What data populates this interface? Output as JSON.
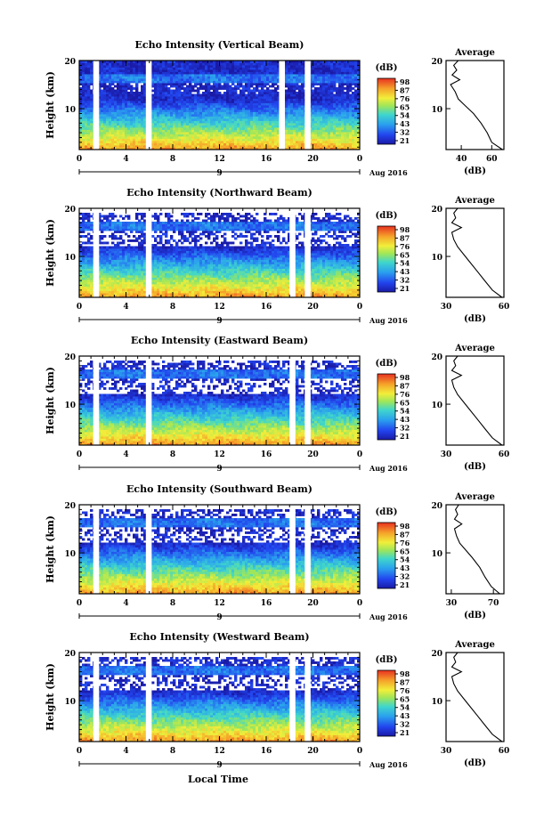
{
  "figure": {
    "xlabel": "Local Time",
    "date_label": "Aug 2016"
  },
  "chart_data": [
    {
      "type": "heatmap",
      "title": "Echo Intensity (Vertical Beam)",
      "ylabel": "Height (km)",
      "y_ticks": [
        "20",
        "10"
      ],
      "x_ticks": [
        "0",
        "4",
        "8",
        "12",
        "16",
        "20",
        "0"
      ],
      "date_tick": "9",
      "date_label": "Aug 2016",
      "xlim": [
        0,
        24
      ],
      "ylim": [
        1.5,
        20
      ],
      "colorbar": {
        "unit": "(dB)",
        "ticks": [
          "98",
          "87",
          "76",
          "65",
          "54",
          "43",
          "32",
          "21"
        ]
      },
      "gaps": [
        [
          1.2,
          1.7
        ],
        [
          5.7,
          6.2
        ],
        [
          17.1,
          17.6
        ],
        [
          19.3,
          19.8
        ]
      ],
      "profile": {
        "title": "Average",
        "xlabel": "(dB)",
        "x_ticks": [
          "40",
          "60"
        ],
        "xlim": [
          30,
          68
        ],
        "y_ticks": [
          "20",
          "10"
        ],
        "heights": [
          1.5,
          3,
          5,
          7,
          9,
          10.5,
          12,
          13.5,
          15,
          16,
          17,
          18,
          19,
          20
        ],
        "values": [
          67,
          60,
          57,
          53,
          48,
          43,
          38,
          36,
          33,
          39,
          34,
          37,
          35,
          38
        ]
      }
    },
    {
      "type": "heatmap",
      "title": "Echo Intensity (Northward Beam)",
      "ylabel": "Height (km)",
      "y_ticks": [
        "20",
        "10"
      ],
      "x_ticks": [
        "0",
        "4",
        "8",
        "12",
        "16",
        "20",
        "0"
      ],
      "date_tick": "9",
      "date_label": "Aug 2016",
      "xlim": [
        0,
        24
      ],
      "ylim": [
        1.5,
        20
      ],
      "colorbar": {
        "unit": "(dB)",
        "ticks": [
          "98",
          "87",
          "76",
          "65",
          "54",
          "43",
          "32",
          "21"
        ]
      },
      "gaps": [
        [
          1.2,
          1.7
        ],
        [
          5.7,
          6.2
        ],
        [
          18.0,
          18.5
        ],
        [
          19.3,
          19.8
        ]
      ],
      "profile": {
        "title": "Average",
        "xlabel": "(dB)",
        "x_ticks": [
          "30",
          "60"
        ],
        "xlim": [
          30,
          60
        ],
        "y_ticks": [
          "20",
          "10"
        ],
        "heights": [
          1.5,
          3,
          5,
          7,
          9,
          10.5,
          12,
          13.5,
          15,
          16,
          17,
          18,
          19,
          20
        ],
        "values": [
          59,
          54,
          50,
          46,
          42,
          39,
          36,
          34,
          33,
          38,
          33,
          35,
          34,
          36
        ]
      }
    },
    {
      "type": "heatmap",
      "title": "Echo Intensity (Eastward Beam)",
      "ylabel": "Height (km)",
      "y_ticks": [
        "20",
        "10"
      ],
      "x_ticks": [
        "0",
        "4",
        "8",
        "12",
        "16",
        "20",
        "0"
      ],
      "date_tick": "9",
      "date_label": "Aug 2016",
      "xlim": [
        0,
        24
      ],
      "ylim": [
        1.5,
        20
      ],
      "colorbar": {
        "unit": "(dB)",
        "ticks": [
          "98",
          "87",
          "76",
          "65",
          "54",
          "43",
          "32",
          "21"
        ]
      },
      "gaps": [
        [
          1.2,
          1.7
        ],
        [
          5.7,
          6.2
        ],
        [
          18.0,
          18.5
        ],
        [
          19.3,
          19.8
        ]
      ],
      "profile": {
        "title": "Average",
        "xlabel": "(dB)",
        "x_ticks": [
          "30",
          "60"
        ],
        "xlim": [
          30,
          60
        ],
        "y_ticks": [
          "20",
          "10"
        ],
        "heights": [
          1.5,
          3,
          5,
          7,
          9,
          10.5,
          12,
          13.5,
          15,
          16,
          17,
          18,
          19,
          20
        ],
        "values": [
          59,
          54,
          50,
          46,
          42,
          39,
          36,
          34,
          33,
          38,
          33,
          35,
          34,
          36
        ]
      }
    },
    {
      "type": "heatmap",
      "title": "Echo Intensity (Southward Beam)",
      "ylabel": "Height (km)",
      "y_ticks": [
        "20",
        "10"
      ],
      "x_ticks": [
        "0",
        "4",
        "8",
        "12",
        "16",
        "20",
        "0"
      ],
      "date_tick": "9",
      "date_label": "Aug 2016",
      "xlim": [
        0,
        24
      ],
      "ylim": [
        1.5,
        20
      ],
      "colorbar": {
        "unit": "(dB)",
        "ticks": [
          "98",
          "87",
          "76",
          "65",
          "54",
          "43",
          "32",
          "21"
        ]
      },
      "gaps": [
        [
          1.2,
          1.7
        ],
        [
          5.7,
          6.2
        ],
        [
          18.0,
          18.5
        ],
        [
          19.3,
          19.8
        ]
      ],
      "profile": {
        "title": "Average",
        "xlabel": "(dB)",
        "x_ticks": [
          "30",
          "70"
        ],
        "xlim": [
          25,
          80
        ],
        "y_ticks": [
          "20",
          "10"
        ],
        "heights": [
          1.5,
          3,
          5,
          7,
          9,
          10.5,
          12,
          13.5,
          15,
          16,
          17,
          18,
          19,
          20
        ],
        "values": [
          76,
          68,
          62,
          57,
          50,
          44,
          38,
          35,
          33,
          40,
          33,
          36,
          34,
          37
        ]
      }
    },
    {
      "type": "heatmap",
      "title": "Echo Intensity (Westward Beam)",
      "ylabel": "Height (km)",
      "y_ticks": [
        "20",
        "10"
      ],
      "x_ticks": [
        "0",
        "4",
        "8",
        "12",
        "16",
        "20",
        "0"
      ],
      "date_tick": "9",
      "date_label": "Aug 2016",
      "xlim": [
        0,
        24
      ],
      "ylim": [
        1.5,
        20
      ],
      "colorbar": {
        "unit": "(dB)",
        "ticks": [
          "98",
          "87",
          "76",
          "65",
          "54",
          "43",
          "32",
          "21"
        ]
      },
      "gaps": [
        [
          1.2,
          1.7
        ],
        [
          5.7,
          6.2
        ],
        [
          18.0,
          18.5
        ],
        [
          19.3,
          19.8
        ]
      ],
      "profile": {
        "title": "Average",
        "xlabel": "(dB)",
        "x_ticks": [
          "30",
          "60"
        ],
        "xlim": [
          30,
          60
        ],
        "y_ticks": [
          "20",
          "10"
        ],
        "heights": [
          1.5,
          3,
          5,
          7,
          9,
          10.5,
          12,
          13.5,
          15,
          16,
          17,
          18,
          19,
          20
        ],
        "values": [
          59,
          54,
          50,
          46,
          42,
          39,
          36,
          34,
          33,
          38,
          33,
          35,
          34,
          36
        ]
      }
    }
  ]
}
